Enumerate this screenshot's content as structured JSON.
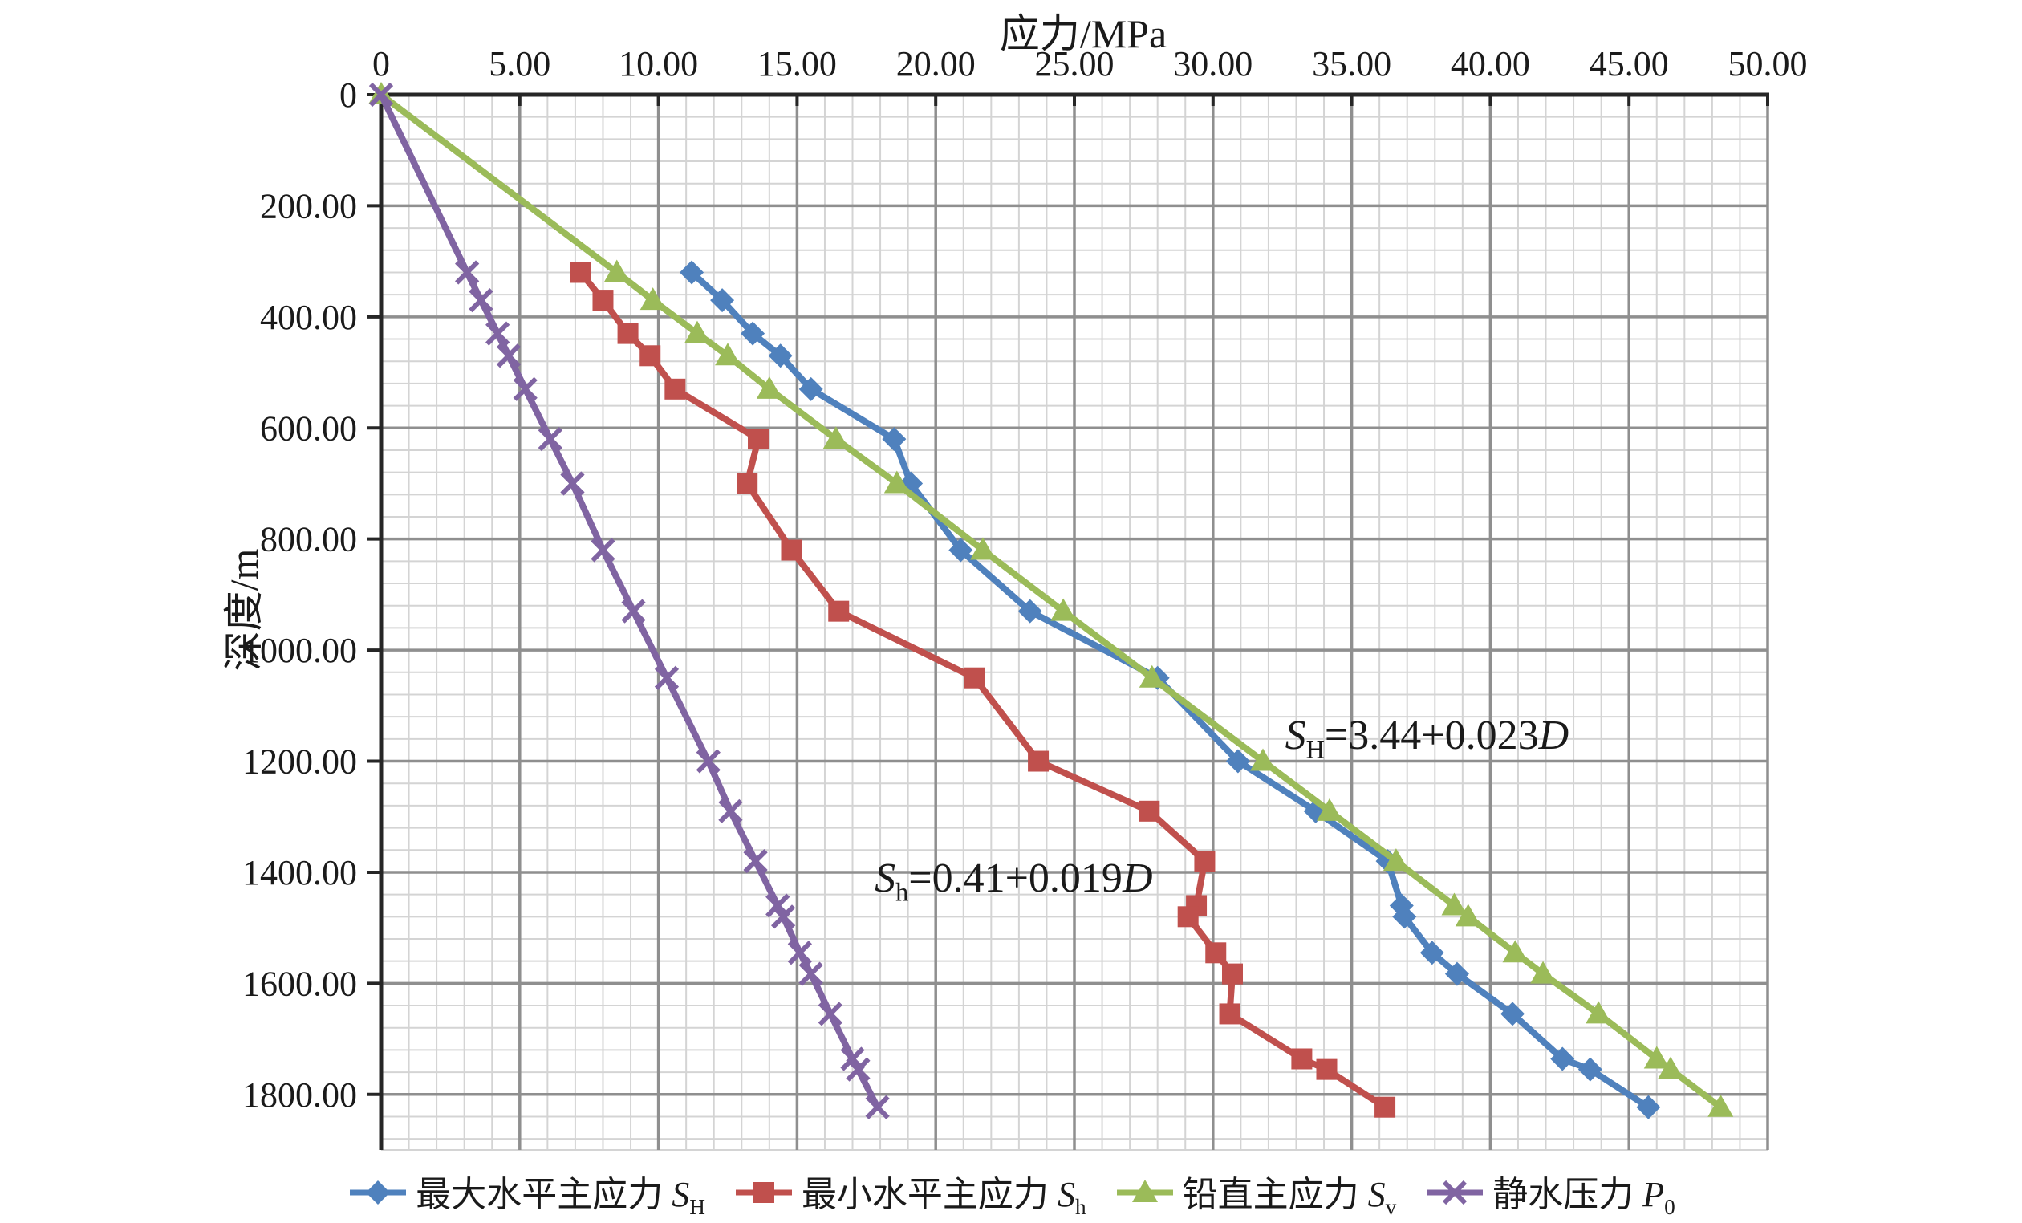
{
  "chart_data": {
    "type": "line",
    "x_label": "应力/MPa",
    "y_label": "深度/m",
    "x_range": [
      0,
      50
    ],
    "y_range": [
      0,
      1900
    ],
    "y_axis_inverted": true,
    "x_axis": {
      "major": 5,
      "minor": 1,
      "tick_labels": [
        "0",
        "5.00",
        "10.00",
        "15.00",
        "20.00",
        "25.00",
        "30.00",
        "35.00",
        "40.00",
        "45.00",
        "50.00"
      ]
    },
    "y_axis": {
      "major": 200,
      "minor": 40,
      "tick_labels": [
        "0",
        "200.00",
        "400.00",
        "600.00",
        "800.00",
        "1000.00",
        "1200.00",
        "1400.00",
        "1600.00",
        "1800.00"
      ]
    },
    "grid": "major+minor",
    "legend_position": "bottom",
    "style": {
      "axis_color": "#262626",
      "major_grid_color": "#8f8f8f",
      "minor_grid_color": "#d4d4d4",
      "text_color": "#1a1a1a"
    },
    "series": [
      {
        "id": "sh-max",
        "name": "最大水平主应力 SH",
        "marker": "diamond",
        "color": "#4f81bd",
        "points": [
          [
            11.2,
            320
          ],
          [
            12.3,
            370
          ],
          [
            13.4,
            430
          ],
          [
            14.4,
            470
          ],
          [
            15.5,
            530
          ],
          [
            18.5,
            620
          ],
          [
            19.1,
            700
          ],
          [
            20.9,
            820
          ],
          [
            23.4,
            930
          ],
          [
            28.0,
            1050
          ],
          [
            30.9,
            1200
          ],
          [
            33.7,
            1290
          ],
          [
            36.3,
            1380
          ],
          [
            36.8,
            1460
          ],
          [
            36.9,
            1480
          ],
          [
            37.9,
            1545
          ],
          [
            38.8,
            1583
          ],
          [
            40.8,
            1655
          ],
          [
            42.6,
            1736
          ],
          [
            43.6,
            1755
          ],
          [
            45.7,
            1823
          ]
        ]
      },
      {
        "id": "sh-min",
        "name": "最小水平主应力 Sh",
        "marker": "square",
        "color": "#c0504d",
        "points": [
          [
            7.2,
            320
          ],
          [
            8.0,
            370
          ],
          [
            8.9,
            430
          ],
          [
            9.7,
            470
          ],
          [
            10.6,
            530
          ],
          [
            13.6,
            620
          ],
          [
            13.2,
            700
          ],
          [
            14.8,
            820
          ],
          [
            16.5,
            930
          ],
          [
            21.4,
            1050
          ],
          [
            23.7,
            1200
          ],
          [
            27.7,
            1290
          ],
          [
            29.7,
            1380
          ],
          [
            29.4,
            1460
          ],
          [
            29.1,
            1480
          ],
          [
            30.1,
            1545
          ],
          [
            30.7,
            1583
          ],
          [
            30.6,
            1655
          ],
          [
            33.2,
            1736
          ],
          [
            34.1,
            1755
          ],
          [
            36.2,
            1823
          ]
        ]
      },
      {
        "id": "sv",
        "name": "铅直主应力 Sv",
        "marker": "triangle",
        "color": "#9bbb59",
        "points": [
          [
            0,
            0
          ],
          [
            8.5,
            320
          ],
          [
            9.8,
            370
          ],
          [
            11.4,
            430
          ],
          [
            12.5,
            470
          ],
          [
            14.0,
            530
          ],
          [
            16.4,
            620
          ],
          [
            18.6,
            700
          ],
          [
            21.7,
            820
          ],
          [
            24.6,
            930
          ],
          [
            27.8,
            1050
          ],
          [
            31.8,
            1200
          ],
          [
            34.2,
            1290
          ],
          [
            36.6,
            1380
          ],
          [
            38.7,
            1460
          ],
          [
            39.2,
            1480
          ],
          [
            40.9,
            1545
          ],
          [
            41.9,
            1583
          ],
          [
            43.9,
            1655
          ],
          [
            46.0,
            1736
          ],
          [
            46.5,
            1755
          ],
          [
            48.3,
            1823
          ]
        ]
      },
      {
        "id": "p0",
        "name": "静水压力 P0",
        "marker": "x",
        "color": "#8064a2",
        "points": [
          [
            0,
            0
          ],
          [
            3.1,
            320
          ],
          [
            3.6,
            370
          ],
          [
            4.2,
            430
          ],
          [
            4.6,
            470
          ],
          [
            5.2,
            530
          ],
          [
            6.1,
            620
          ],
          [
            6.9,
            700
          ],
          [
            8.0,
            820
          ],
          [
            9.1,
            930
          ],
          [
            10.3,
            1050
          ],
          [
            11.8,
            1200
          ],
          [
            12.6,
            1290
          ],
          [
            13.5,
            1380
          ],
          [
            14.3,
            1460
          ],
          [
            14.5,
            1480
          ],
          [
            15.1,
            1545
          ],
          [
            15.5,
            1583
          ],
          [
            16.2,
            1655
          ],
          [
            17.0,
            1736
          ],
          [
            17.2,
            1755
          ],
          [
            17.9,
            1823
          ]
        ]
      }
    ],
    "annotations": [
      {
        "id": "sh-max-fit",
        "var": "S",
        "sub": "H",
        "body": "=3.44+0.023",
        "tail": "D",
        "x": 32.6,
        "y": 1163
      },
      {
        "id": "sh-min-fit",
        "var": "S",
        "sub": "h",
        "body": "=0.41+0.019",
        "tail": "D",
        "x": 17.8,
        "y": 1420
      }
    ]
  },
  "legend": {
    "items": [
      {
        "id": "sh-max",
        "text": "最大水平主应力 ",
        "var": "S",
        "sub": "H",
        "marker": "diamond",
        "color": "#4f81bd"
      },
      {
        "id": "sh-min",
        "text": "最小水平主应力 ",
        "var": "S",
        "sub": "h",
        "marker": "square",
        "color": "#c0504d"
      },
      {
        "id": "sv",
        "text": "铅直主应力 ",
        "var": "S",
        "sub": "v",
        "marker": "triangle",
        "color": "#9bbb59"
      },
      {
        "id": "p0",
        "text": "静水压力 ",
        "var": "P",
        "sub": "0",
        "marker": "x",
        "color": "#8064a2"
      }
    ]
  }
}
